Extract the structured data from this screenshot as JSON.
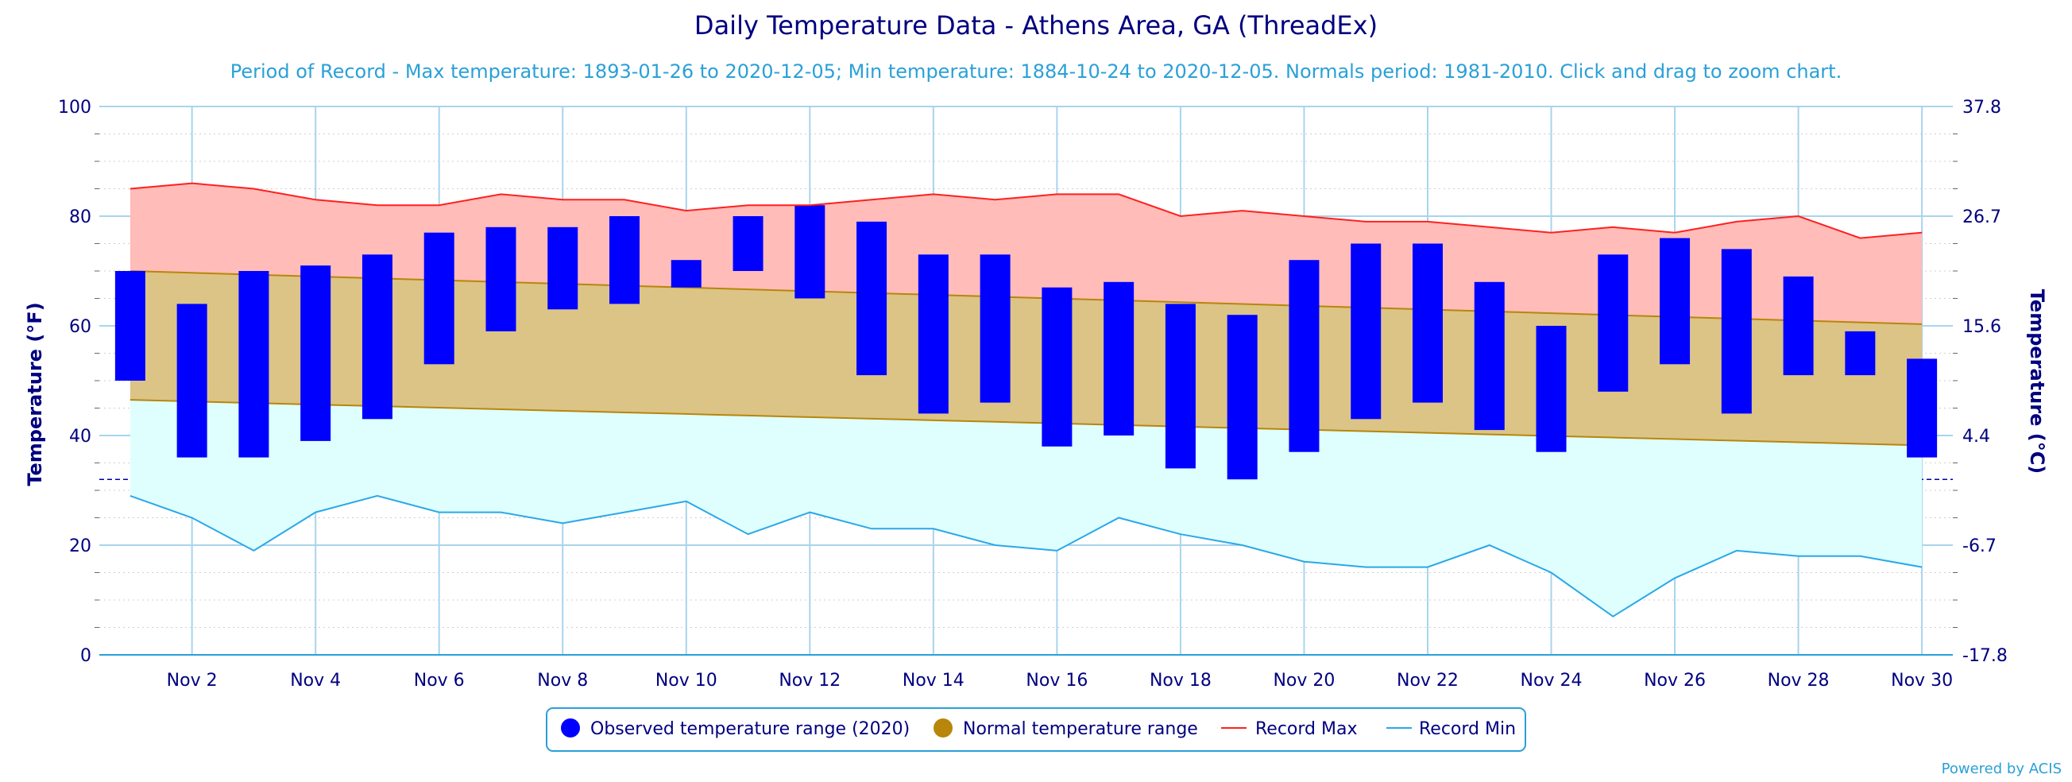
{
  "chart_data": {
    "type": "bar",
    "title": "Daily Temperature Data - Athens Area, GA (ThreadEx)",
    "subtitle": "Period of Record - Max temperature: 1893-01-26 to 2020-12-05; Min temperature: 1884-10-24 to 2020-12-05. Normals period: 1981-2010. Click and drag to zoom chart.",
    "ylabel": "Temperature (°F)",
    "ylabel_right": "Temperature (°C)",
    "ylim": [
      0,
      100
    ],
    "yticks": [
      0,
      20,
      40,
      60,
      80,
      100
    ],
    "yticks_right": [
      "-17.8",
      "-6.7",
      "4.4",
      "15.6",
      "26.7",
      "37.8"
    ],
    "reference_line": 32,
    "x_days": [
      1,
      2,
      3,
      4,
      5,
      6,
      7,
      8,
      9,
      10,
      11,
      12,
      13,
      14,
      15,
      16,
      17,
      18,
      19,
      20,
      21,
      22,
      23,
      24,
      25,
      26,
      27,
      28,
      29,
      30
    ],
    "xtick_labels": [
      "Nov 2",
      "Nov 4",
      "Nov 6",
      "Nov 8",
      "Nov 10",
      "Nov 12",
      "Nov 14",
      "Nov 16",
      "Nov 18",
      "Nov 20",
      "Nov 22",
      "Nov 24",
      "Nov 26",
      "Nov 28",
      "Nov 30"
    ],
    "series": [
      {
        "name": "Observed temperature range (2020)",
        "color": "#0000ff",
        "low": [
          50,
          36,
          36,
          39,
          43,
          53,
          59,
          63,
          64,
          67,
          70,
          65,
          51,
          44,
          46,
          38,
          40,
          34,
          32,
          37,
          43,
          46,
          41,
          37,
          48,
          53,
          44,
          51,
          51,
          36
        ],
        "high": [
          70,
          64,
          70,
          71,
          73,
          77,
          78,
          78,
          80,
          72,
          80,
          82,
          79,
          73,
          73,
          67,
          68,
          64,
          62,
          72,
          75,
          75,
          68,
          60,
          73,
          76,
          74,
          69,
          59,
          54
        ]
      },
      {
        "name": "Normal temperature range",
        "color": "#b8860b",
        "low": [
          46.5,
          38.2
        ],
        "high": [
          70.0,
          60.3
        ]
      },
      {
        "name": "Record Max",
        "color": "#ff2020",
        "values": [
          85,
          86,
          85,
          83,
          82,
          82,
          84,
          83,
          83,
          81,
          82,
          82,
          83,
          84,
          83,
          84,
          84,
          80,
          81,
          80,
          79,
          79,
          78,
          77,
          78,
          77,
          79,
          80,
          76,
          77
        ]
      },
      {
        "name": "Record Min",
        "color": "#2aa8e8",
        "values": [
          29,
          25,
          19,
          26,
          29,
          26,
          26,
          24,
          26,
          28,
          22,
          26,
          23,
          23,
          20,
          19,
          25,
          22,
          20,
          17,
          16,
          16,
          20,
          15,
          7,
          14,
          19,
          18,
          18,
          16
        ]
      }
    ],
    "grid": true,
    "legend_position": "bottom"
  },
  "credit": "Powered by ACIS"
}
